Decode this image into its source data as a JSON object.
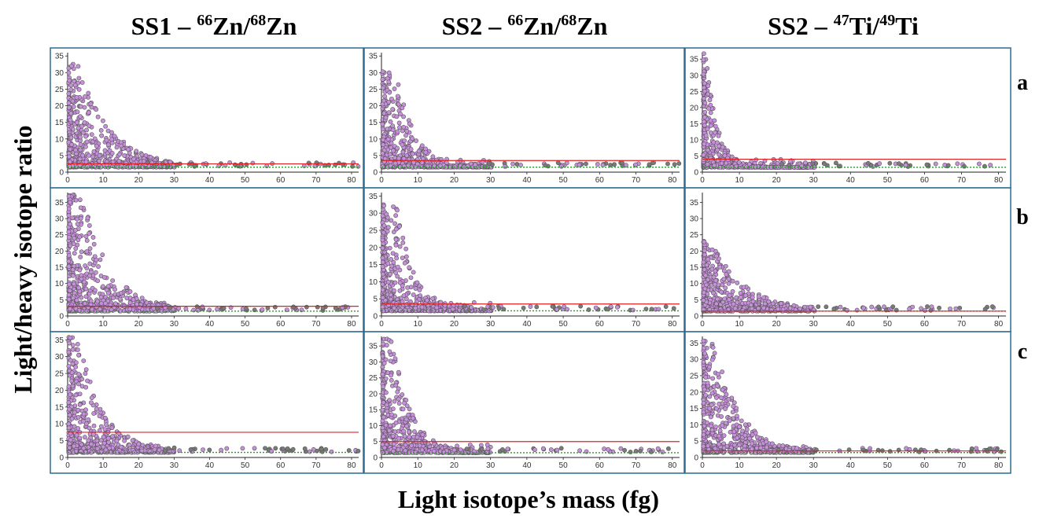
{
  "figure": {
    "y_axis_title": "Light/heavy isotope ratio",
    "x_axis_title": "Light isotope’s mass (fg)",
    "columns": [
      {
        "prefix": "SS1 – ",
        "mass1": "66",
        "el1": "Zn",
        "sep": "/",
        "mass2": "68",
        "el2": "Zn"
      },
      {
        "prefix": "SS2 – ",
        "mass1": "66",
        "el1": "Zn",
        "sep": "/",
        "mass2": "68",
        "el2": "Zn"
      },
      {
        "prefix": "SS2 – ",
        "mass1": "47",
        "el1": "Ti",
        "sep": "/",
        "mass2": "49",
        "el2": "Ti"
      }
    ],
    "rows": [
      "a",
      "b",
      "c"
    ]
  },
  "colors": {
    "point_fill": "#c890dc",
    "point_stroke": "#555555",
    "gray_point": "#7a7a7a",
    "red_line": "#e02020",
    "green_line": "#2a9a2a",
    "frame": "#2e6b8e"
  },
  "chart_data": [
    {
      "type": "scatter",
      "panel": "SS1 66Zn/68Zn a",
      "xlim": [
        0,
        82
      ],
      "ylim": [
        0,
        36
      ],
      "xticks": [
        0,
        10,
        20,
        30,
        40,
        50,
        60,
        70,
        80
      ],
      "yticks": [
        0,
        5,
        10,
        15,
        20,
        25,
        30,
        35
      ],
      "red_line": 2.5,
      "green_line": 1.5,
      "max_ratio": 33,
      "peak_mass": 3,
      "decay": 9
    },
    {
      "type": "scatter",
      "panel": "SS2 66Zn/68Zn a",
      "xlim": [
        0,
        82
      ],
      "ylim": [
        0,
        36
      ],
      "xticks": [
        0,
        10,
        20,
        30,
        40,
        50,
        60,
        70,
        80
      ],
      "yticks": [
        0,
        5,
        10,
        15,
        20,
        25,
        30,
        35
      ],
      "red_line": 3.5,
      "green_line": 1.5,
      "max_ratio": 31,
      "peak_mass": 4,
      "decay": 5
    },
    {
      "type": "scatter",
      "panel": "SS2 47Ti/49Ti a",
      "xlim": [
        0,
        82
      ],
      "ylim": [
        0,
        37
      ],
      "xticks": [
        0,
        10,
        20,
        30,
        40,
        50,
        60,
        70,
        80
      ],
      "yticks": [
        0,
        5,
        10,
        15,
        20,
        25,
        30,
        35
      ],
      "red_line": 4,
      "green_line": 1.5,
      "max_ratio": 37,
      "peak_mass": 1,
      "decay": 3
    },
    {
      "type": "scatter",
      "panel": "SS1 66Zn/68Zn b",
      "xlim": [
        0,
        82
      ],
      "ylim": [
        0,
        38
      ],
      "xticks": [
        0,
        10,
        20,
        30,
        40,
        50,
        60,
        70,
        80
      ],
      "yticks": [
        0,
        5,
        10,
        15,
        20,
        25,
        30,
        35
      ],
      "red_line": 3,
      "green_line": 1.5,
      "max_ratio": 38,
      "peak_mass": 4,
      "decay": 8
    },
    {
      "type": "scatter",
      "panel": "SS2 66Zn/68Zn b",
      "xlim": [
        0,
        82
      ],
      "ylim": [
        0,
        36
      ],
      "xticks": [
        0,
        10,
        20,
        30,
        40,
        50,
        60,
        70,
        80
      ],
      "yticks": [
        0,
        5,
        10,
        15,
        20,
        25,
        30,
        35
      ],
      "red_line": 3.5,
      "green_line": 1.5,
      "max_ratio": 33,
      "peak_mass": 4,
      "decay": 5
    },
    {
      "type": "scatter",
      "panel": "SS2 47Ti/49Ti b",
      "xlim": [
        0,
        82
      ],
      "ylim": [
        0,
        38
      ],
      "xticks": [
        0,
        10,
        20,
        30,
        40,
        50,
        60,
        70,
        80
      ],
      "yticks": [
        0,
        5,
        10,
        15,
        20,
        25,
        30,
        35
      ],
      "red_line": 1.5,
      "green_line": 1.5,
      "max_ratio": 24,
      "peak_mass": 2,
      "decay": 9
    },
    {
      "type": "scatter",
      "panel": "SS1 66Zn/68Zn c",
      "xlim": [
        0,
        82
      ],
      "ylim": [
        0,
        36
      ],
      "xticks": [
        0,
        10,
        20,
        30,
        40,
        50,
        60,
        70,
        80
      ],
      "yticks": [
        0,
        5,
        10,
        15,
        20,
        25,
        30,
        35
      ],
      "red_line": 7.5,
      "green_line": 1.5,
      "max_ratio": 36,
      "peak_mass": 3,
      "decay": 7
    },
    {
      "type": "scatter",
      "panel": "SS2 66Zn/68Zn c",
      "xlim": [
        0,
        82
      ],
      "ylim": [
        0,
        38
      ],
      "xticks": [
        0,
        10,
        20,
        30,
        40,
        50,
        60,
        70,
        80
      ],
      "yticks": [
        0,
        5,
        10,
        15,
        20,
        25,
        30,
        35
      ],
      "red_line": 5,
      "green_line": 1.5,
      "max_ratio": 38,
      "peak_mass": 3,
      "decay": 5
    },
    {
      "type": "scatter",
      "panel": "SS2 47Ti/49Ti c",
      "xlim": [
        0,
        82
      ],
      "ylim": [
        0,
        37
      ],
      "xticks": [
        0,
        10,
        20,
        30,
        40,
        50,
        60,
        70,
        80
      ],
      "yticks": [
        0,
        5,
        10,
        15,
        20,
        25,
        30,
        35
      ],
      "red_line": 2,
      "green_line": 1.5,
      "max_ratio": 36,
      "peak_mass": 3,
      "decay": 7
    }
  ]
}
